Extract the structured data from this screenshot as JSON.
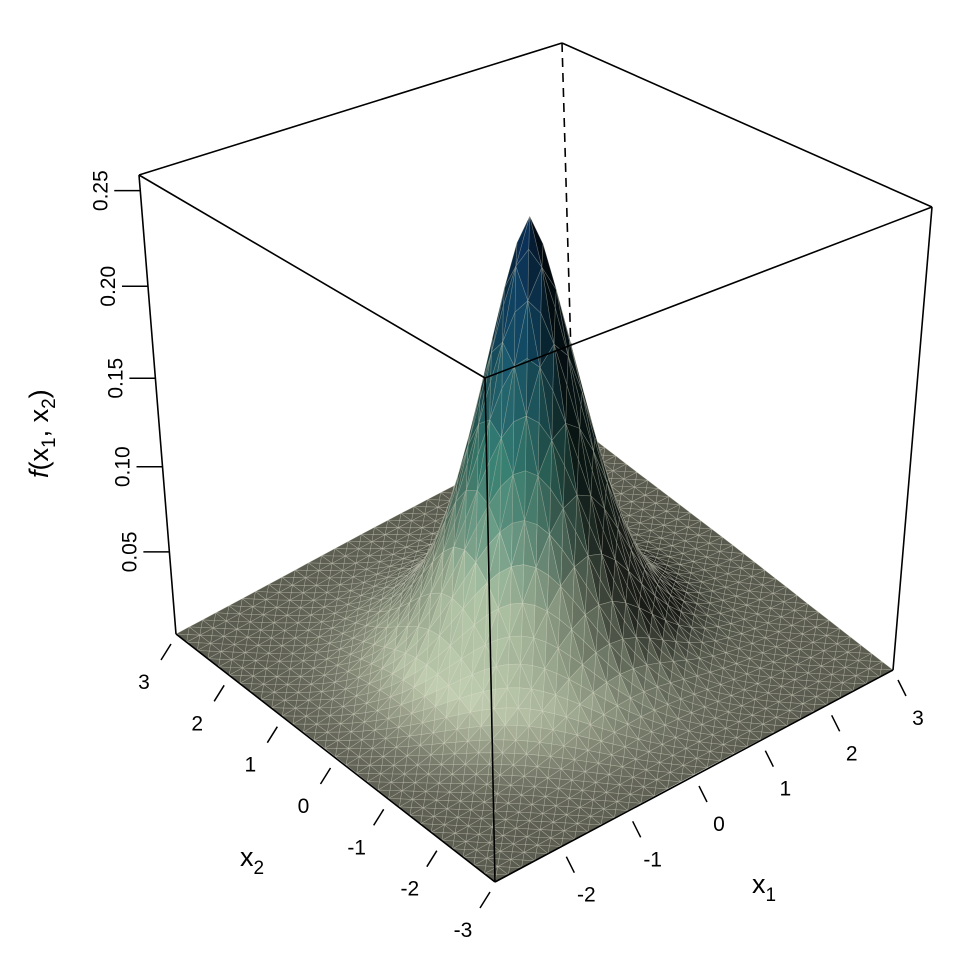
{
  "chart_data": {
    "type": "surface",
    "x1": {
      "label": "x",
      "subscript": "1",
      "range": [
        -3,
        3
      ],
      "ticks": [
        "-2",
        "-1",
        "0",
        "1",
        "2",
        "3"
      ],
      "tick_values": [
        -2,
        -1,
        0,
        1,
        2,
        3
      ],
      "grid_step": 0.2
    },
    "x2": {
      "label": "x",
      "subscript": "2",
      "range": [
        -3,
        3
      ],
      "ticks": [
        "3",
        "2",
        "1",
        "0",
        "-1",
        "-2",
        "-3"
      ],
      "tick_values": [
        3,
        2,
        1,
        0,
        -1,
        -2,
        -3
      ],
      "grid_step": 0.2
    },
    "z": {
      "label_func": "f",
      "label_args": [
        "x",
        "1",
        "x",
        "2"
      ],
      "range": [
        0,
        0.258
      ],
      "ticks": [
        "0.05",
        "0.10",
        "0.15",
        "0.20",
        "0.25"
      ],
      "tick_values": [
        0.05,
        0.1,
        0.15,
        0.2,
        0.25
      ]
    },
    "peak": {
      "x1": 0,
      "x2": 0,
      "z": 0.25
    },
    "view": "perspective from the (-3,-3) corner, box drawn",
    "colormap": [
      "#66675a",
      "#b8c4a8",
      "#d8f2cc",
      "#4fb8a4",
      "#1a6f9a",
      "#08285e"
    ],
    "colormap_stops": [
      0,
      0.08,
      0.25,
      0.5,
      0.75,
      1
    ],
    "edge_color": "#dcdcc8"
  }
}
